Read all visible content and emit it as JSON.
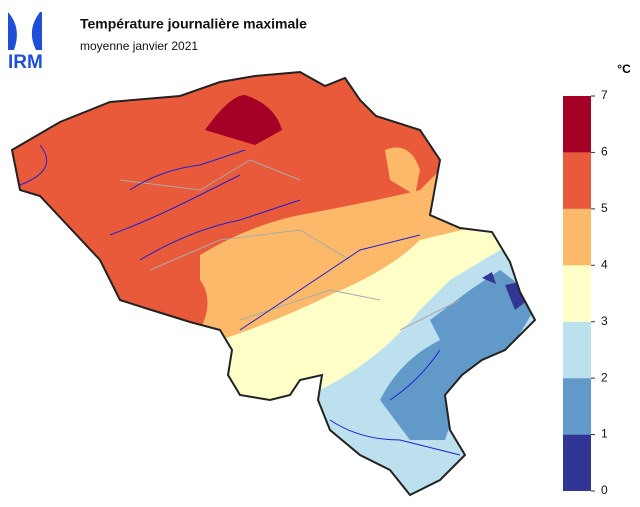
{
  "logo": "IRM",
  "title": "Température journalière maximale",
  "subtitle": "moyenne janvier 2021",
  "legend": {
    "unit": "°C",
    "ticks": [
      0,
      1,
      2,
      3,
      4,
      5,
      6,
      7
    ],
    "colors": [
      "#313695",
      "#6199c8",
      "#bde0ee",
      "#ffffc8",
      "#fdb96a",
      "#e85a3a",
      "#a50026"
    ]
  }
}
